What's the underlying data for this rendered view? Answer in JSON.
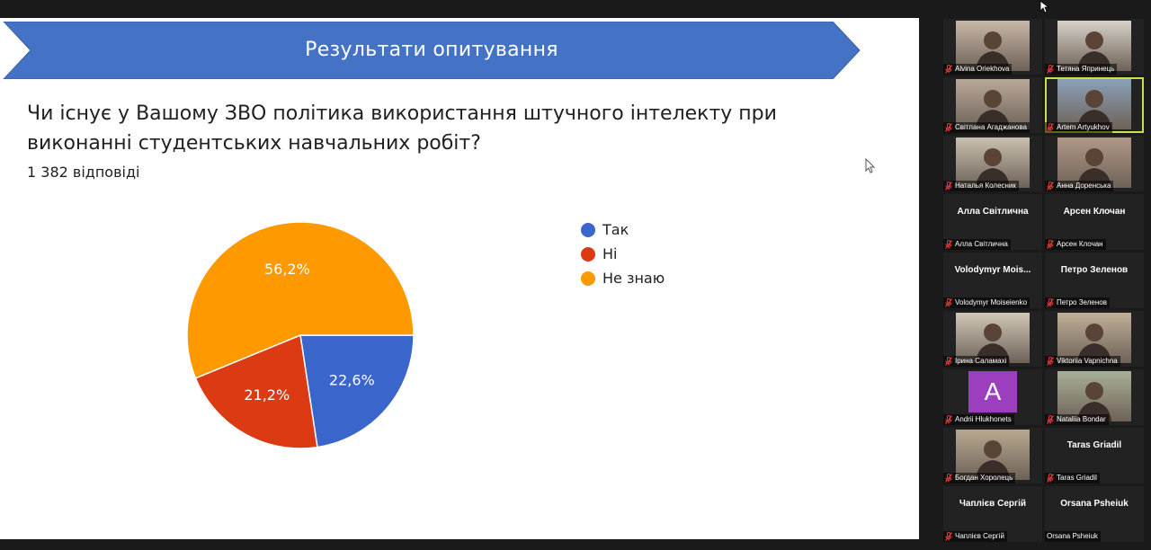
{
  "slide": {
    "banner_title": "Результати опитування",
    "question": "Чи існує у Вашому ЗВО політика використання штучного інтелекту при виконанні студентських навчальних робіт?",
    "responses": "1 382 відповіді",
    "banner_color": "#4472c4"
  },
  "chart_data": {
    "type": "pie",
    "slices": [
      {
        "label": "Так",
        "value": 22.6,
        "display": "22,6%",
        "color": "#3a66cc"
      },
      {
        "label": "Ні",
        "value": 21.2,
        "display": "21,2%",
        "color": "#dc3a12"
      },
      {
        "label": "Не знаю",
        "value": 56.2,
        "display": "56,2%",
        "color": "#ff9900"
      }
    ],
    "legend": "right",
    "title": "",
    "start_direction": "right"
  },
  "participants": [
    {
      "name": "Alvina Oriekhova",
      "photo": true
    },
    {
      "name": "Тетяна Япринець",
      "photo": true
    },
    {
      "name": "Світлана Агаджанова",
      "photo": true
    },
    {
      "name": "Artem Artyukhov",
      "photo": true,
      "active": true
    },
    {
      "name": "Наталья Колесник",
      "photo": true
    },
    {
      "name": "Анна Доренська",
      "photo": true
    },
    {
      "name": "Алла Світлична",
      "display": "Алла Світлична"
    },
    {
      "name": "Арсен Клочан",
      "display": "Арсен Клочан"
    },
    {
      "name": "Volodymyr Moiseienko",
      "display": "Volodymyr  Mois..."
    },
    {
      "name": "Петро Зеленов",
      "display": "Петро Зеленов"
    },
    {
      "name": "Ірина Саламахі",
      "photo": true
    },
    {
      "name": "Viktoriia Vapnichna",
      "photo": true
    },
    {
      "name": "Andrii Hlukhonets",
      "avatar": "A"
    },
    {
      "name": "Nataliia Bondar",
      "photo": true
    },
    {
      "name": "Богдан Хоролець",
      "photo": true
    },
    {
      "name": "Taras Griadil",
      "display": "Taras Griadil"
    },
    {
      "name": "Чаплієв Сергій",
      "display": "Чаплієв Сергій"
    },
    {
      "name": "Orsana Psheiuk",
      "display": "Orsana Psheiuk",
      "no_mic": true
    }
  ]
}
